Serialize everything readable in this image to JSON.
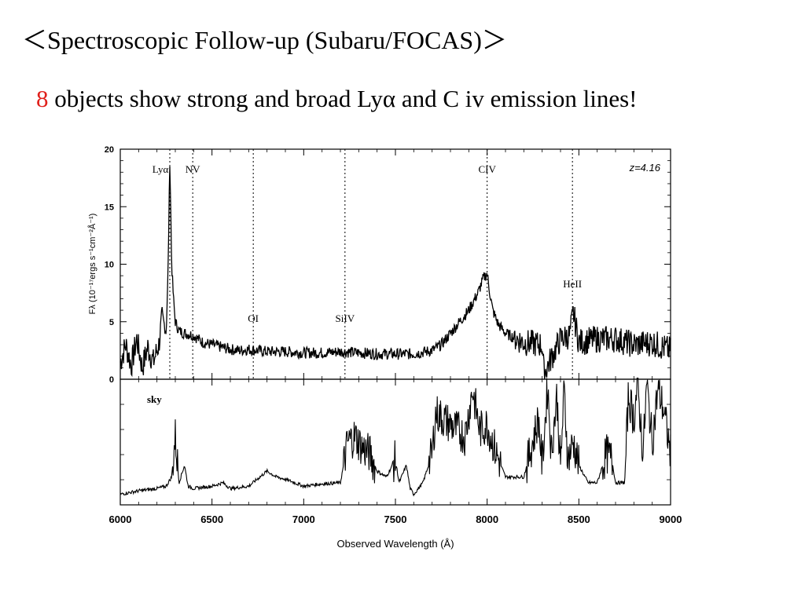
{
  "slide": {
    "title_left": "＜",
    "title": "Spectroscopic Follow-up (Subaru/FOCAS)",
    "title_right": "＞",
    "headline_number": "8",
    "headline_text": " objects show strong and broad Lyα and C iv emission lines!",
    "accent_color": "#e0201b"
  },
  "chart_data": [
    {
      "type": "line",
      "panel": "object",
      "ylabel": "Fλ (10⁻¹⁷ergs s⁻¹cm⁻²Å⁻¹)",
      "annotation": "z=4.16",
      "xlim": [
        6000,
        9000
      ],
      "ylim": [
        0,
        20
      ],
      "yticks": [
        0,
        5,
        10,
        15,
        20
      ],
      "grid": false,
      "lines": [
        {
          "label": "Lyα",
          "x": 6270
        },
        {
          "label": "NV",
          "x": 6395
        },
        {
          "label": "OI",
          "x": 6725
        },
        {
          "label": "SiIV",
          "x": 7225
        },
        {
          "label": "CIV",
          "x": 8000
        },
        {
          "label": "HeII",
          "x": 8465
        }
      ],
      "series": [
        {
          "x": [
            6000,
            6030,
            6060,
            6090,
            6120,
            6150,
            6180,
            6210,
            6230,
            6250,
            6260,
            6270,
            6275,
            6280,
            6290,
            6300,
            6320,
            6350,
            6400,
            6450,
            6500,
            6550,
            6600,
            6650,
            6700,
            6750,
            6800,
            6900,
            7000,
            7100,
            7200,
            7300,
            7400,
            7500,
            7600,
            7700,
            7750,
            7800,
            7850,
            7900,
            7950,
            7980,
            8000,
            8010,
            8030,
            8060,
            8100,
            8200,
            8300,
            8310,
            8400,
            8450,
            8470,
            8500,
            8600,
            8700,
            8800,
            8900,
            9000
          ],
          "y": [
            1.5,
            3.0,
            1.2,
            3.5,
            1.0,
            2.8,
            1.5,
            3.0,
            5.5,
            4.0,
            9.0,
            19.0,
            15.0,
            10.0,
            7.0,
            5.0,
            4.2,
            4.0,
            3.8,
            3.2,
            3.0,
            2.8,
            2.6,
            2.5,
            2.6,
            2.5,
            2.4,
            2.4,
            2.3,
            2.3,
            2.4,
            2.3,
            2.2,
            2.2,
            2.2,
            2.5,
            3.0,
            4.0,
            5.0,
            6.0,
            7.5,
            8.8,
            9.2,
            8.0,
            6.0,
            4.8,
            4.0,
            3.2,
            3.0,
            0.5,
            3.5,
            3.8,
            5.8,
            3.2,
            3.5,
            3.5,
            3.0,
            3.2,
            2.5
          ]
        }
      ]
    },
    {
      "type": "line",
      "panel": "sky",
      "annotation": "sky",
      "xlabel": "Observed Wavelength (Å)",
      "xlim": [
        6000,
        9000
      ],
      "xticks": [
        6000,
        6500,
        7000,
        7500,
        8000,
        8500,
        9000
      ],
      "series": [
        {
          "x": [
            6000,
            6100,
            6200,
            6250,
            6280,
            6300,
            6320,
            6350,
            6370,
            6400,
            6500,
            6560,
            6600,
            6700,
            6800,
            6850,
            6900,
            6950,
            7000,
            7100,
            7200,
            7240,
            7280,
            7320,
            7360,
            7400,
            7450,
            7500,
            7520,
            7560,
            7580,
            7600,
            7650,
            7700,
            7720,
            7760,
            7800,
            7840,
            7880,
            7920,
            7960,
            8000,
            8050,
            8100,
            8200,
            8280,
            8300,
            8330,
            8350,
            8380,
            8400,
            8420,
            8440,
            8470,
            8500,
            8550,
            8600,
            8650,
            8680,
            8700,
            8750,
            8770,
            8800,
            8820,
            8850,
            8870,
            8900,
            8930,
            8960,
            9000
          ],
          "y": [
            0.05,
            0.08,
            0.1,
            0.12,
            0.2,
            0.55,
            0.15,
            0.3,
            0.12,
            0.1,
            0.12,
            0.15,
            0.1,
            0.12,
            0.25,
            0.2,
            0.18,
            0.15,
            0.12,
            0.14,
            0.15,
            0.5,
            0.55,
            0.45,
            0.4,
            0.25,
            0.2,
            0.35,
            0.15,
            0.3,
            0.1,
            0.05,
            0.15,
            0.4,
            0.75,
            0.7,
            0.65,
            0.6,
            0.55,
            0.95,
            0.6,
            0.65,
            0.4,
            0.2,
            0.2,
            0.7,
            0.3,
            1.0,
            0.4,
            0.9,
            0.3,
            0.95,
            0.35,
            0.5,
            0.3,
            0.15,
            0.15,
            0.4,
            0.35,
            0.15,
            0.15,
            0.9,
            0.7,
            1.0,
            0.4,
            1.0,
            0.5,
            0.95,
            0.8,
            0.4
          ]
        }
      ]
    }
  ]
}
